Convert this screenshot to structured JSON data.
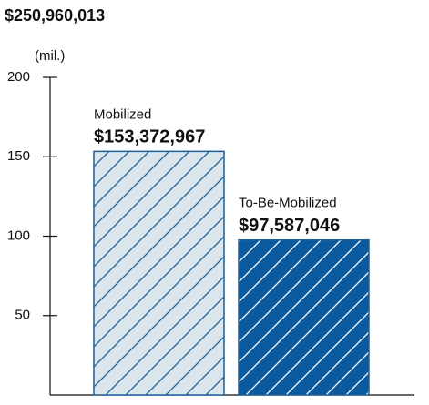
{
  "chart_data": {
    "type": "bar",
    "title": "$250,960,013",
    "y_label": "(mil.)",
    "categories": [
      "Mobilized",
      "To-Be-Mobilized"
    ],
    "values": [
      153.372967,
      97.587046
    ],
    "value_labels": [
      "$153,372,967",
      "$97,587,046"
    ],
    "colors": [
      "#dbe5ec",
      "#0b5a9e"
    ],
    "hatch_colors": [
      "#1f5f99",
      "#ffffff"
    ],
    "edge_color": "#1f5f99",
    "ylim": [
      0,
      200
    ],
    "yticks": [
      50,
      100,
      150,
      200
    ],
    "hatch": true
  }
}
